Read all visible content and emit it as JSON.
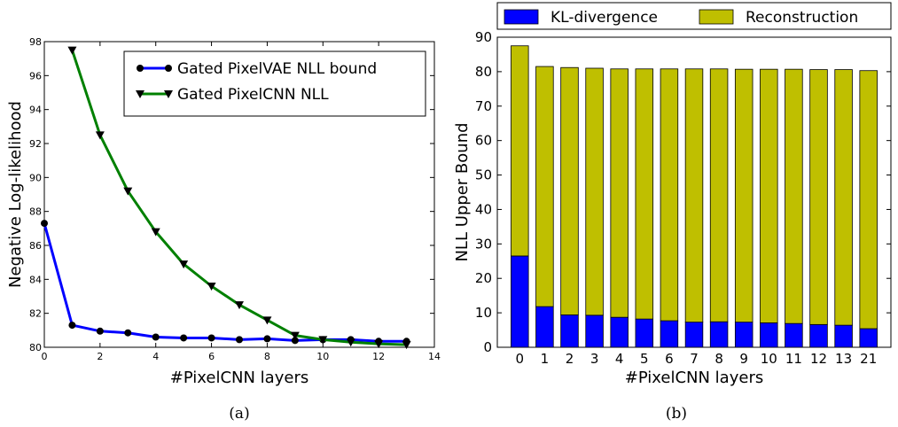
{
  "chart_data": [
    {
      "type": "line",
      "caption": "(a)",
      "xlabel": "#PixelCNN layers",
      "ylabel": "Negative Log-likelihood",
      "xlim": [
        0,
        14
      ],
      "ylim": [
        80,
        98
      ],
      "xticks": [
        0,
        2,
        4,
        6,
        8,
        10,
        12,
        14
      ],
      "yticks": [
        80,
        82,
        84,
        86,
        88,
        90,
        92,
        94,
        96,
        98
      ],
      "legend_position": "top-right",
      "series": [
        {
          "name": "Gated PixelVAE NLL bound",
          "color": "#0000ff",
          "marker": "circle",
          "x": [
            0,
            1,
            2,
            3,
            4,
            5,
            6,
            7,
            8,
            9,
            10,
            11,
            12,
            13
          ],
          "y": [
            87.3,
            81.3,
            80.95,
            80.85,
            80.6,
            80.55,
            80.55,
            80.45,
            80.5,
            80.4,
            80.45,
            80.45,
            80.35,
            80.35
          ]
        },
        {
          "name": "Gated PixelCNN NLL",
          "color": "#008000",
          "marker": "triangle-down",
          "x": [
            1,
            2,
            3,
            4,
            5,
            6,
            7,
            8,
            9,
            10,
            11,
            12,
            13
          ],
          "y": [
            97.5,
            92.5,
            89.2,
            86.8,
            84.9,
            83.6,
            82.5,
            81.6,
            80.7,
            80.45,
            80.3,
            80.2,
            80.15
          ]
        }
      ]
    },
    {
      "type": "bar",
      "stacked": true,
      "caption": "(b)",
      "xlabel": "#PixelCNN layers",
      "ylabel": "NLL Upper Bound",
      "ylim": [
        0,
        90
      ],
      "yticks": [
        0,
        10,
        20,
        30,
        40,
        50,
        60,
        70,
        80,
        90
      ],
      "legend_position": "top (above plot)",
      "categories": [
        "0",
        "1",
        "2",
        "3",
        "4",
        "5",
        "6",
        "7",
        "8",
        "9",
        "10",
        "11",
        "12",
        "13",
        "21"
      ],
      "series": [
        {
          "name": "KL-divergence",
          "color": "#0000ff",
          "values": [
            26.5,
            11.8,
            9.4,
            9.3,
            8.7,
            8.2,
            7.7,
            7.3,
            7.4,
            7.3,
            7.1,
            6.9,
            6.6,
            6.4,
            5.4
          ]
        },
        {
          "name": "Reconstruction",
          "color": "#bfbf00",
          "values": [
            61.0,
            69.7,
            71.8,
            71.7,
            72.1,
            72.6,
            73.1,
            73.5,
            73.4,
            73.4,
            73.6,
            73.8,
            74.0,
            74.2,
            74.9
          ]
        }
      ]
    }
  ]
}
